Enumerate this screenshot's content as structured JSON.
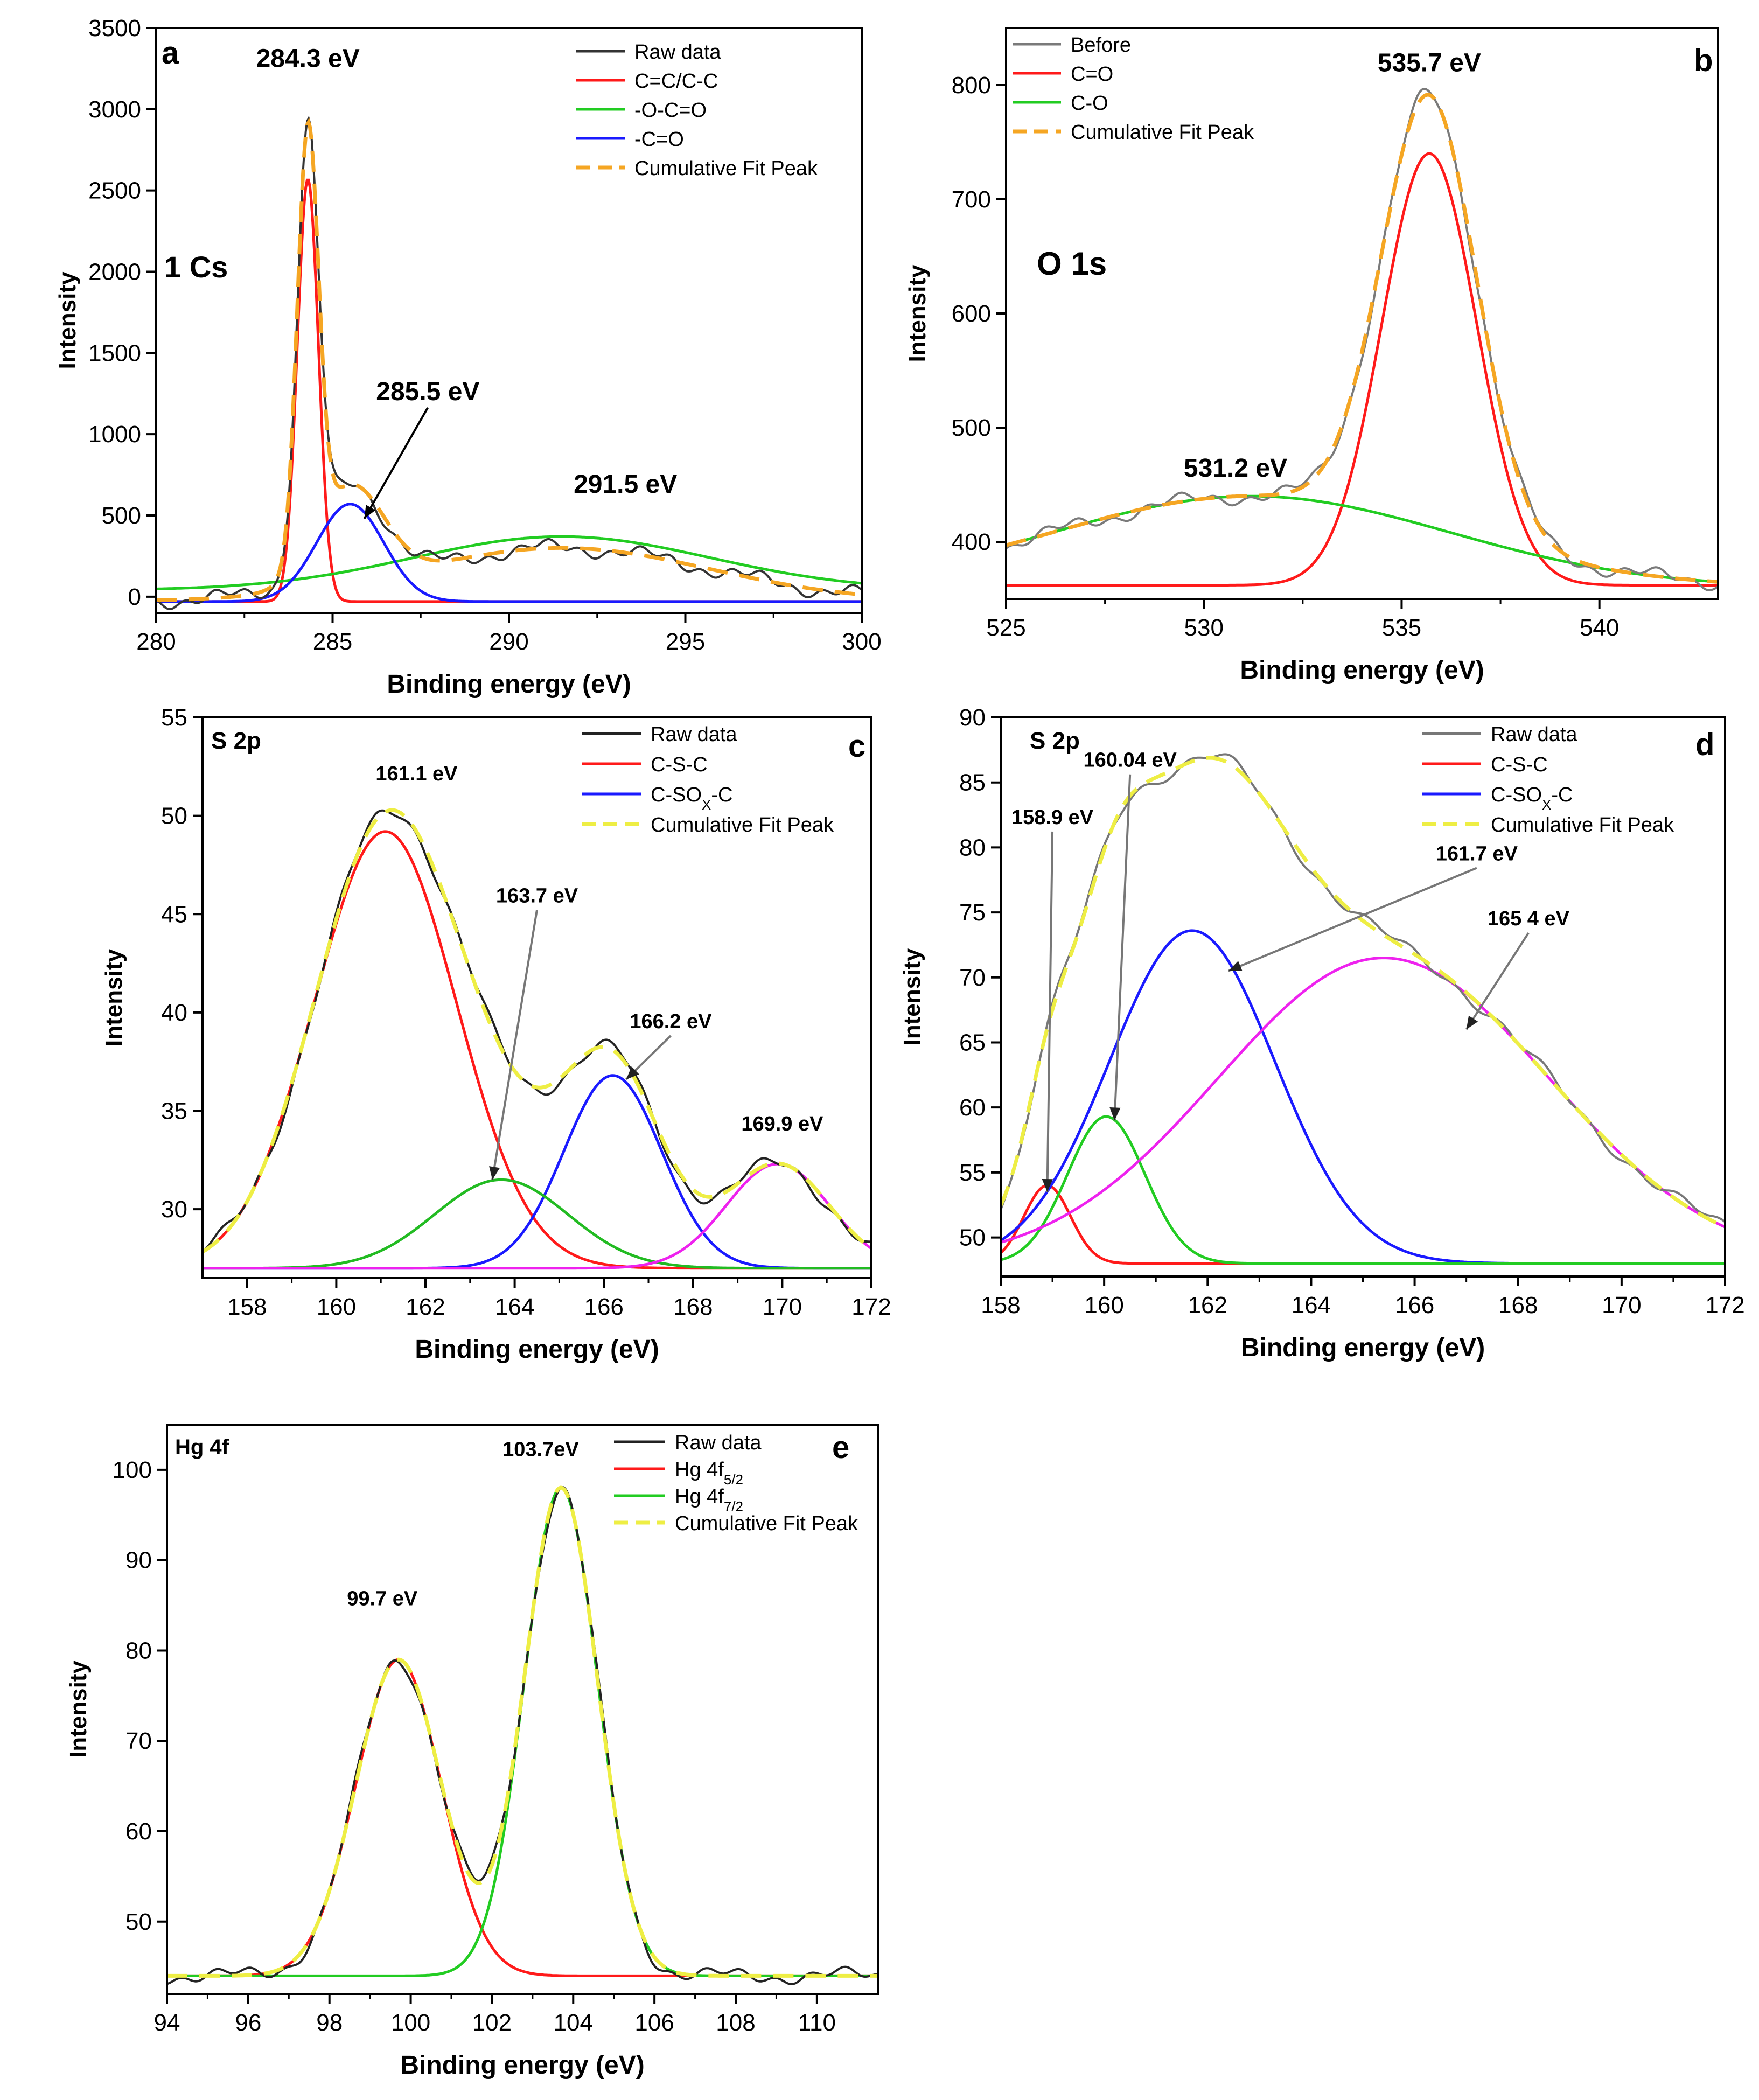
{
  "chart_data": [
    {
      "id": "a",
      "type": "line",
      "panel_label": "a",
      "title": "1 Cs",
      "xlabel": "Binding energy (eV)",
      "ylabel": "Intensity",
      "xlim": [
        280,
        300
      ],
      "ylim": [
        -100,
        3500
      ],
      "xticks": [
        280,
        285,
        290,
        295,
        300
      ],
      "yticks": [
        0,
        500,
        1000,
        1500,
        2000,
        2500,
        3000,
        3500
      ],
      "legend_position": "top-right",
      "series": [
        {
          "name": "Raw data",
          "color": "#333333",
          "dash": "solid"
        },
        {
          "name": "C=C/C-C",
          "color": "#ff1a1a",
          "dash": "solid",
          "components": [
            {
              "center": 284.3,
              "amplitude": 2600,
              "sigma": 0.3
            }
          ],
          "baseline": -30
        },
        {
          "name": "-O-C=O",
          "color": "#22cc22",
          "dash": "solid",
          "components": [
            {
              "center": 291.5,
              "amplitude": 330,
              "sigma": 4.2
            }
          ],
          "baseline": 40
        },
        {
          "name": "-C=O",
          "color": "#1a1aff",
          "dash": "solid",
          "components": [
            {
              "center": 285.5,
              "amplitude": 600,
              "sigma": 0.95
            }
          ],
          "baseline": -30
        },
        {
          "name": "Cumulative Fit Peak",
          "color": "#f5a623",
          "dash": "dashed"
        }
      ],
      "annotations": [
        {
          "text": "284.3 eV",
          "x": 284.3,
          "y": 3260
        },
        {
          "text": "285.5 eV",
          "x": 287.7,
          "y": 1210
        },
        {
          "text": "291.5 eV",
          "x": 293.3,
          "y": 640
        }
      ]
    },
    {
      "id": "b",
      "type": "line",
      "panel_label": "b",
      "title": "O 1s",
      "xlabel": "Binding energy (eV)",
      "ylabel": "Intensity",
      "xlim": [
        525,
        543
      ],
      "ylim": [
        350,
        850
      ],
      "xticks": [
        525,
        530,
        535,
        540
      ],
      "yticks": [
        400,
        500,
        600,
        700,
        800
      ],
      "legend_position": "top-left",
      "series": [
        {
          "name": "Before",
          "color": "#7a7a7a",
          "dash": "solid"
        },
        {
          "name": "C=O",
          "color": "#ff1a1a",
          "dash": "solid",
          "components": [
            {
              "center": 535.7,
              "amplitude": 378,
              "sigma": 1.2
            }
          ],
          "baseline": 362
        },
        {
          "name": "C-O",
          "color": "#22cc22",
          "dash": "solid",
          "components": [
            {
              "center": 531.2,
              "amplitude": 80,
              "sigma": 5.0
            }
          ],
          "baseline": 360
        },
        {
          "name": "Cumulative Fit Peak",
          "color": "#f5a623",
          "dash": "dashed"
        }
      ],
      "annotations": [
        {
          "text": "535.7 eV",
          "x": 535.7,
          "y": 812
        },
        {
          "text": "531.2 eV",
          "x": 530.8,
          "y": 457
        }
      ]
    },
    {
      "id": "c",
      "type": "line",
      "panel_label": "c",
      "title": "S 2p",
      "xlabel": "Binding energy (eV)",
      "ylabel": "Intensity",
      "xlim": [
        157,
        172
      ],
      "ylim": [
        26.5,
        55
      ],
      "xticks": [
        158,
        160,
        162,
        164,
        166,
        168,
        170,
        172
      ],
      "yticks": [
        30,
        35,
        40,
        45,
        50,
        55
      ],
      "legend_position": "top-right",
      "series": [
        {
          "name": "Raw data",
          "color": "#222222",
          "dash": "solid"
        },
        {
          "name": "C-S-C",
          "color": "#ff1a1a",
          "dash": "solid",
          "components": [
            {
              "center": 161.1,
              "amplitude": 22.2,
              "sigma": 1.6
            }
          ],
          "baseline": 27.0
        },
        {
          "name": "C-SO",
          "sub": "X",
          "suffix": "-C",
          "color": "#1a1aff",
          "dash": "solid",
          "components": [
            {
              "center": 166.2,
              "amplitude": 9.8,
              "sigma": 1.1
            }
          ],
          "baseline": 27.0
        },
        {
          "name": "Cumulative Fit Peak",
          "color": "#eeee44",
          "dash": "dashed"
        }
      ],
      "extra_series": [
        {
          "name": "163.7 component",
          "color": "#22bb22",
          "components": [
            {
              "center": 163.7,
              "amplitude": 4.5,
              "sigma": 1.5
            }
          ],
          "baseline": 27.0
        },
        {
          "name": "169.9 component",
          "color": "#ee22ee",
          "components": [
            {
              "center": 169.9,
              "amplitude": 5.3,
              "sigma": 1.15
            }
          ],
          "baseline": 27.0
        }
      ],
      "annotations": [
        {
          "text": "161.1 eV",
          "x": 161.8,
          "y": 51.8
        },
        {
          "text": "163.7 eV",
          "x": 164.5,
          "y": 45.6
        },
        {
          "text": "166.2 eV",
          "x": 167.5,
          "y": 39.2
        },
        {
          "text": "169.9 eV",
          "x": 170.0,
          "y": 34.0
        }
      ]
    },
    {
      "id": "d",
      "type": "line",
      "panel_label": "d",
      "title": "S 2p",
      "xlabel": "Binding energy (eV)",
      "ylabel": "Intensity",
      "xlim": [
        158,
        172
      ],
      "ylim": [
        47,
        90
      ],
      "xticks": [
        158,
        160,
        162,
        164,
        166,
        168,
        170,
        172
      ],
      "yticks": [
        50,
        55,
        60,
        65,
        70,
        75,
        80,
        85,
        90
      ],
      "legend_position": "top-right",
      "series": [
        {
          "name": "Raw data",
          "color": "#777777",
          "dash": "solid"
        },
        {
          "name": "C-S-C",
          "color": "#ff1a1a",
          "dash": "solid",
          "components": [
            {
              "center": 158.9,
              "amplitude": 6.0,
              "sigma": 0.45
            }
          ],
          "baseline": 48.0
        },
        {
          "name": "C-SO",
          "sub": "X",
          "suffix": "-C",
          "color": "#1a1aff",
          "dash": "solid",
          "components": [
            {
              "center": 161.7,
              "amplitude": 25.6,
              "sigma": 1.6
            }
          ],
          "baseline": 48.0
        },
        {
          "name": "Cumulative Fit Peak",
          "color": "#eeee44",
          "dash": "dashed"
        }
      ],
      "extra_series": [
        {
          "name": "160.04 component",
          "color": "#22cc22",
          "components": [
            {
              "center": 160.04,
              "amplitude": 11.3,
              "sigma": 0.75
            }
          ],
          "baseline": 48.0
        },
        {
          "name": "165.4 component",
          "color": "#ee22ee",
          "components": [
            {
              "center": 165.4,
              "amplitude": 23.5,
              "sigma": 3.2
            }
          ],
          "baseline": 48.0
        }
      ],
      "annotations": [
        {
          "text": "158.9 eV",
          "x": 159.0,
          "y": 81.8
        },
        {
          "text": "160.04 eV",
          "x": 160.5,
          "y": 86.2
        },
        {
          "text": "161.7 eV",
          "x": 167.2,
          "y": 79.0
        },
        {
          "text": "165 4 eV",
          "x": 168.2,
          "y": 74.0
        }
      ]
    },
    {
      "id": "e",
      "type": "line",
      "panel_label": "e",
      "title": "Hg 4f",
      "xlabel": "Binding energy (eV)",
      "ylabel": "Intensity",
      "xlim": [
        94,
        111.5
      ],
      "ylim": [
        42,
        105
      ],
      "xticks": [
        94,
        96,
        98,
        100,
        102,
        104,
        106,
        108,
        110
      ],
      "yticks": [
        50,
        60,
        70,
        80,
        90,
        100
      ],
      "legend_position": "top-right",
      "series": [
        {
          "name": "Raw data",
          "color": "#222222",
          "dash": "solid"
        },
        {
          "name": "Hg 4f",
          "sub": "5/2",
          "suffix": "",
          "color": "#ff1a1a",
          "dash": "solid",
          "components": [
            {
              "center": 99.7,
              "amplitude": 35.0,
              "sigma": 1.05
            }
          ],
          "baseline": 44.0
        },
        {
          "name": "Hg 4f",
          "sub": "7/2",
          "suffix": "",
          "color": "#22cc22",
          "dash": "solid",
          "components": [
            {
              "center": 103.7,
              "amplitude": 54.0,
              "sigma": 0.9
            }
          ],
          "baseline": 44.0
        },
        {
          "name": "Cumulative Fit Peak",
          "color": "#eeee44",
          "dash": "dashed"
        }
      ],
      "annotations": [
        {
          "text": "99.7 eV",
          "x": 99.3,
          "y": 85.0
        },
        {
          "text": "103.7eV",
          "x": 103.2,
          "y": 101.5
        }
      ]
    }
  ]
}
